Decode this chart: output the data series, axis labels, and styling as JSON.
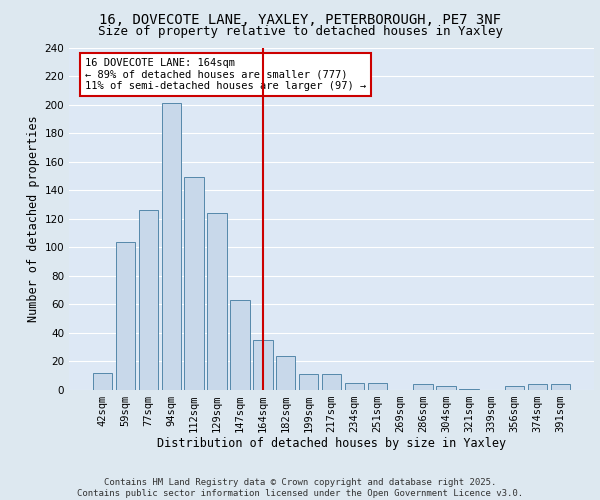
{
  "title_line1": "16, DOVECOTE LANE, YAXLEY, PETERBOROUGH, PE7 3NF",
  "title_line2": "Size of property relative to detached houses in Yaxley",
  "xlabel": "Distribution of detached houses by size in Yaxley",
  "ylabel": "Number of detached properties",
  "footer": "Contains HM Land Registry data © Crown copyright and database right 2025.\nContains public sector information licensed under the Open Government Licence v3.0.",
  "bar_labels": [
    "42sqm",
    "59sqm",
    "77sqm",
    "94sqm",
    "112sqm",
    "129sqm",
    "147sqm",
    "164sqm",
    "182sqm",
    "199sqm",
    "217sqm",
    "234sqm",
    "251sqm",
    "269sqm",
    "286sqm",
    "304sqm",
    "321sqm",
    "339sqm",
    "356sqm",
    "374sqm",
    "391sqm"
  ],
  "bar_values": [
    12,
    104,
    126,
    201,
    149,
    124,
    63,
    35,
    24,
    11,
    11,
    5,
    5,
    0,
    4,
    3,
    1,
    0,
    3,
    4,
    4
  ],
  "bar_color": "#c8d8ea",
  "bar_edge_color": "#5588aa",
  "highlight_index": 7,
  "highlight_color_line": "#cc0000",
  "annotation_text": "16 DOVECOTE LANE: 164sqm\n← 89% of detached houses are smaller (777)\n11% of semi-detached houses are larger (97) →",
  "annotation_box_color": "#ffffff",
  "annotation_box_edge": "#cc0000",
  "bg_color": "#dde8f0",
  "plot_bg_color": "#dde8f5",
  "grid_color": "#ffffff",
  "ylim": [
    0,
    240
  ],
  "yticks": [
    0,
    20,
    40,
    60,
    80,
    100,
    120,
    140,
    160,
    180,
    200,
    220,
    240
  ],
  "title1_fontsize": 10,
  "title2_fontsize": 9,
  "xlabel_fontsize": 8.5,
  "ylabel_fontsize": 8.5,
  "tick_fontsize": 7.5,
  "annotation_fontsize": 7.5,
  "footer_fontsize": 6.5
}
